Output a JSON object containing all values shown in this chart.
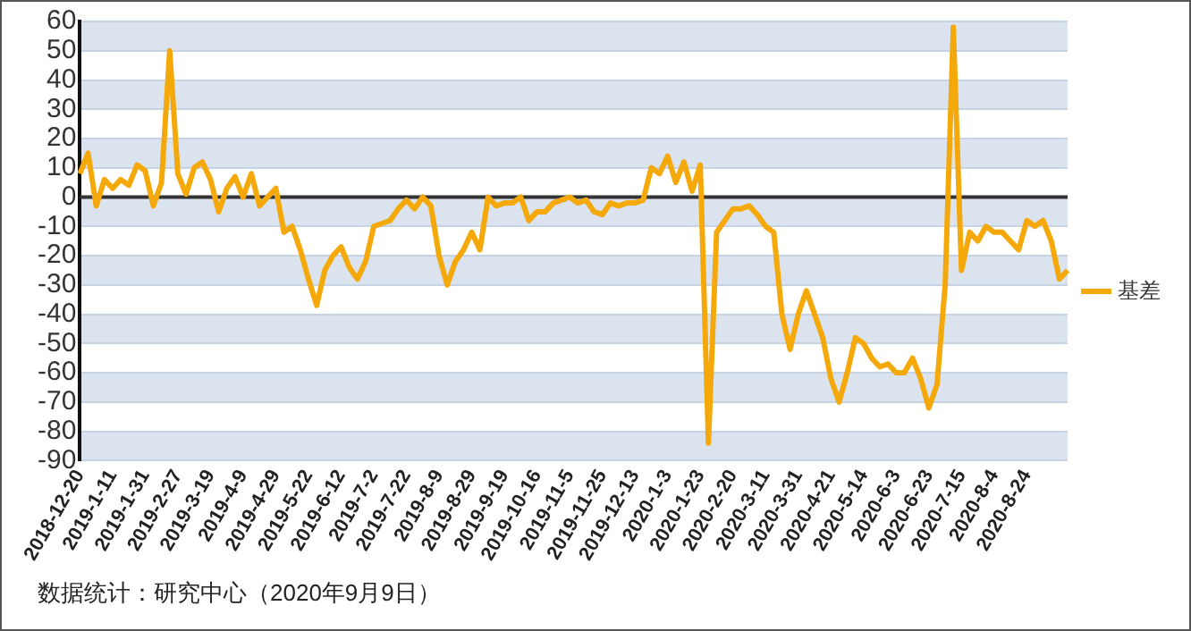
{
  "chart_data": {
    "type": "line",
    "categories": [
      "2018-12-20",
      null,
      null,
      null,
      "2019-1-11",
      null,
      null,
      null,
      "2019-1-31",
      null,
      null,
      null,
      "2019-2-27",
      null,
      null,
      null,
      "2019-3-19",
      null,
      null,
      null,
      "2019-4-9",
      null,
      null,
      null,
      "2019-4-29",
      null,
      null,
      null,
      "2019-5-22",
      null,
      null,
      null,
      "2019-6-12",
      null,
      null,
      null,
      "2019-7-2",
      null,
      null,
      null,
      "2019-7-22",
      null,
      null,
      null,
      "2019-8-9",
      null,
      null,
      null,
      "2019-8-29",
      null,
      null,
      null,
      "2019-9-19",
      null,
      null,
      null,
      "2019-10-16",
      null,
      null,
      null,
      "2019-11-5",
      null,
      null,
      null,
      "2019-11-25",
      null,
      null,
      null,
      "2019-12-13",
      null,
      null,
      null,
      "2020-1-3",
      null,
      null,
      null,
      "2020-1-23",
      null,
      null,
      null,
      "2020-2-20",
      null,
      null,
      null,
      "2020-3-11",
      null,
      null,
      null,
      "2020-3-31",
      null,
      null,
      null,
      "2020-4-21",
      null,
      null,
      null,
      "2020-5-14",
      null,
      null,
      null,
      "2020-6-3",
      null,
      null,
      null,
      "2020-6-23",
      null,
      null,
      null,
      "2020-7-15",
      null,
      null,
      null,
      "2020-8-4",
      null,
      null,
      null,
      "2020-8-24",
      null,
      null,
      null,
      null,
      null
    ],
    "series": [
      {
        "name": "基差",
        "color": "#f5a80a",
        "values": [
          8,
          15,
          -3,
          6,
          3,
          6,
          4,
          11,
          9,
          -3,
          5,
          50,
          8,
          1,
          10,
          12,
          6,
          -5,
          3,
          7,
          0,
          8,
          -3,
          0,
          3,
          -12,
          -10,
          -18,
          -28,
          -37,
          -25,
          -20,
          -17,
          -24,
          -28,
          -22,
          -10,
          -9,
          -8,
          -4,
          -1,
          -4,
          0,
          -3,
          -20,
          -30,
          -22,
          -18,
          -12,
          -18,
          0,
          -3,
          -2,
          -2,
          0,
          -8,
          -5,
          -5,
          -2,
          -1,
          0,
          -2,
          -1,
          -5,
          -6,
          -2,
          -3,
          -2,
          -2,
          -1,
          10,
          8,
          14,
          5,
          12,
          2,
          11,
          -84,
          -12,
          -8,
          -4,
          -4,
          -3,
          -6,
          -10,
          -12,
          -40,
          -52,
          -40,
          -32,
          -40,
          -48,
          -62,
          -70,
          -60,
          -48,
          -50,
          -55,
          -58,
          -57,
          -60,
          -60,
          -55,
          -62,
          -72,
          -64,
          -30,
          58,
          -25,
          -12,
          -15,
          -10,
          -12,
          -12,
          -15,
          -18,
          -8,
          -10,
          -8,
          -15,
          -28,
          -25
        ]
      }
    ],
    "ylim": [
      -90,
      60
    ],
    "yticks": [
      -90,
      -80,
      -70,
      -60,
      -50,
      -40,
      -30,
      -20,
      -10,
      0,
      10,
      20,
      30,
      40,
      50,
      60
    ],
    "grid": "y",
    "legend": "right",
    "marker": "none",
    "line_style": "solid",
    "ref_lines": [
      {
        "axis": "y",
        "value": 0,
        "color": "#333333"
      }
    ],
    "annotations": [
      "数据统计：研究中心（2020年9月9日）"
    ]
  }
}
